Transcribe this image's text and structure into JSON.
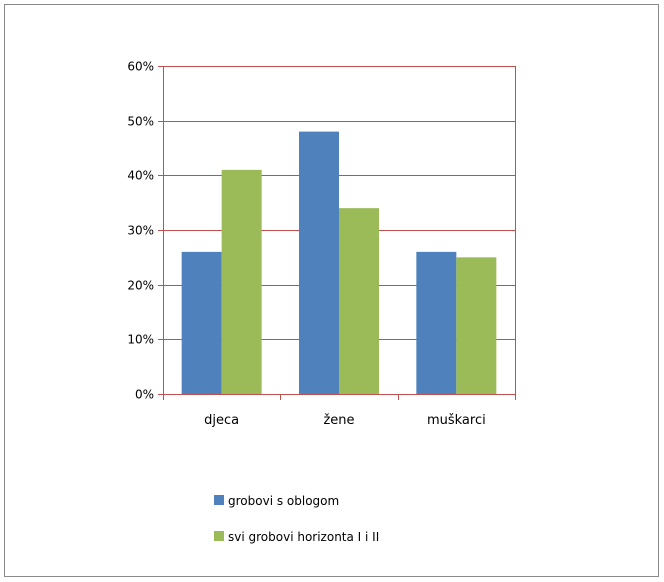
{
  "chart_data": {
    "type": "bar",
    "title": "",
    "xlabel": "",
    "ylabel": "",
    "categories": [
      "djeca",
      "žene",
      "muškarci"
    ],
    "series": [
      {
        "name": "grobovi s oblogom",
        "values": [
          0.26,
          0.48,
          0.26
        ],
        "color": "#4f81bd"
      },
      {
        "name": "svi grobovi horizonta I i II",
        "values": [
          0.41,
          0.34,
          0.25
        ],
        "color": "#9bbb59"
      }
    ],
    "ylim": [
      0,
      0.6
    ],
    "yticks": [
      0,
      0.1,
      0.2,
      0.3,
      0.4,
      0.5,
      0.6
    ],
    "ytick_labels": [
      "0%",
      "10%",
      "20%",
      "30%",
      "40%",
      "50%",
      "60%"
    ],
    "grid": true,
    "grid_color": "#c0504d",
    "legend_position": "bottom-left"
  }
}
